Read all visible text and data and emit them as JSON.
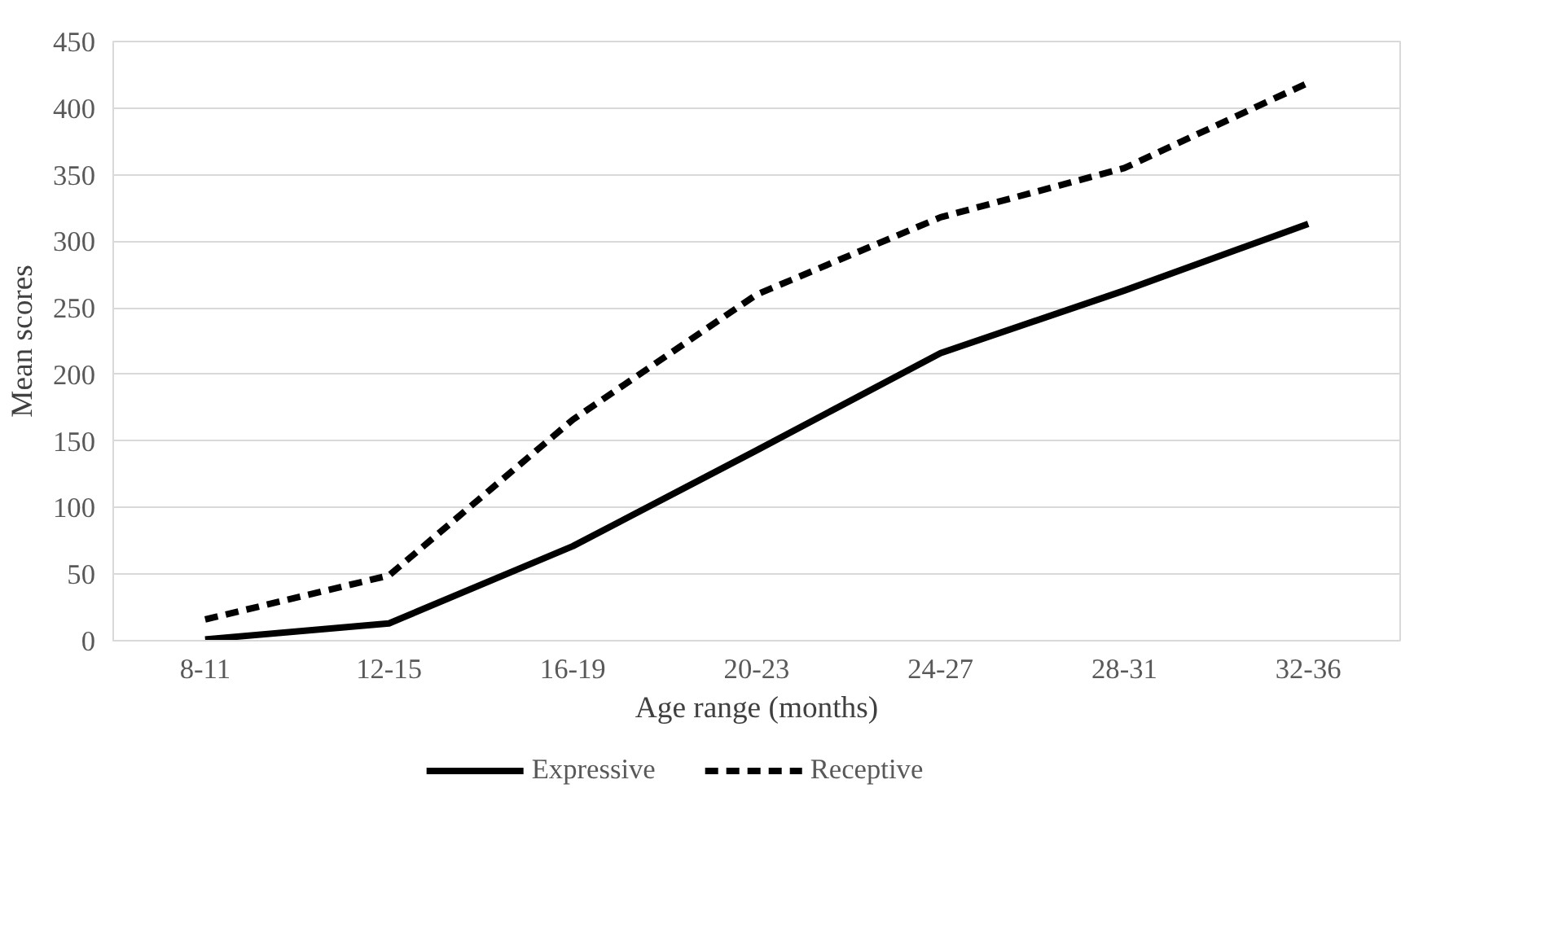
{
  "chart_data": {
    "type": "line",
    "xlabel": "Age range (months)",
    "ylabel": "Mean scores",
    "categories": [
      "8-11",
      "12-15",
      "16-19",
      "20-23",
      "24-27",
      "28-31",
      "32-36"
    ],
    "series": [
      {
        "name": "Expressive",
        "color": "#000000",
        "line_style": "solid",
        "values": [
          1,
          13,
          71,
          143,
          216,
          263,
          313
        ]
      },
      {
        "name": "Receptive",
        "color": "#000000",
        "line_style": "dashed",
        "values": [
          16,
          49,
          166,
          260,
          318,
          355,
          419
        ]
      }
    ],
    "ylim": [
      0,
      450
    ],
    "yticks": [
      0,
      50,
      100,
      150,
      200,
      250,
      300,
      350,
      400,
      450
    ],
    "grid": "y",
    "legend": "bottom",
    "marker": "none"
  }
}
